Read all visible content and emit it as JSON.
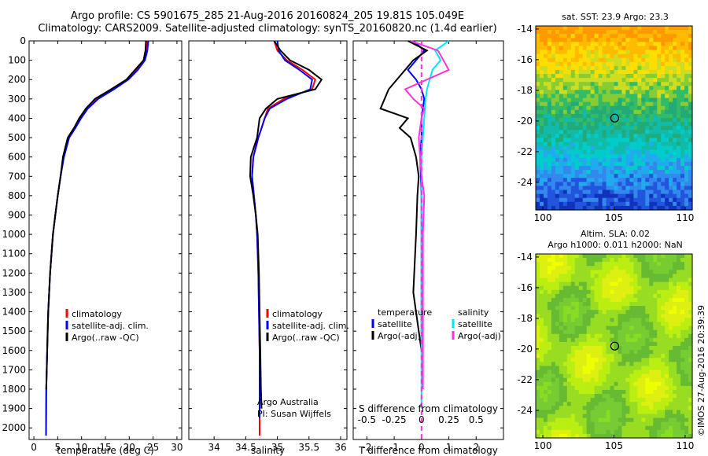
{
  "header": {
    "line1": "Argo profile: CS 5901675_285 21-Aug-2016 20160824_205 19.81S 105.049E",
    "line2": "Climatology: CARS2009. Satellite-adjusted climatology: synTS_20160820.nc (1.4d earlier)"
  },
  "colors": {
    "climatology": "#ff0000",
    "satellite": "#0000ff",
    "argo": "#000000",
    "sat_temp": "#00e5ff",
    "argo_sal": "#ff33dd"
  },
  "footer": {
    "credit": "©IMOS 27-Aug-2016 20:39:39",
    "argo": "Argo Australia",
    "pi": "PI: Susan Wijffels"
  },
  "chart_data": [
    {
      "type": "line",
      "name": "temperature-profile",
      "xlabel": "temperature (deg C)",
      "xlim": [
        -1,
        31
      ],
      "ylim": [
        2060,
        0
      ],
      "xticks": [
        "0",
        "5",
        "10",
        "15",
        "20",
        "25",
        "30"
      ],
      "yticks": [
        "0",
        "100",
        "200",
        "300",
        "400",
        "500",
        "600",
        "700",
        "800",
        "900",
        "1000",
        "1100",
        "1200",
        "1300",
        "1400",
        "1500",
        "1600",
        "1700",
        "1800",
        "1900",
        "2000"
      ],
      "legend": [
        "climatology",
        "satellite-adj. clim.",
        "Argo(..raw -QC)"
      ],
      "series": [
        {
          "name": "climatology",
          "color": "#ff0000",
          "x": [
            23.8,
            23.6,
            23.2,
            21.5,
            19.5,
            16.5,
            13.2,
            11,
            9.7,
            8.5,
            7.2,
            6.2,
            5.6,
            5,
            4.5,
            4,
            3.7,
            3.4,
            3.2,
            3,
            2.9,
            2.8,
            2.6,
            2.55
          ],
          "y": [
            0,
            50,
            100,
            150,
            200,
            250,
            300,
            350,
            400,
            450,
            500,
            600,
            700,
            800,
            900,
            1000,
            1100,
            1200,
            1300,
            1400,
            1500,
            1600,
            1800,
            2040
          ]
        },
        {
          "name": "satellite-adj. clim.",
          "color": "#0000ff",
          "x": [
            24,
            23.8,
            23.3,
            21.8,
            19.8,
            16.8,
            13.5,
            11.3,
            9.9,
            8.7,
            7.4,
            6.3,
            5.6,
            5,
            4.5,
            4,
            3.7,
            3.4,
            3.2,
            3,
            2.9,
            2.8,
            2.6,
            2.55
          ],
          "y": [
            0,
            50,
            100,
            150,
            200,
            250,
            300,
            350,
            400,
            450,
            500,
            600,
            700,
            800,
            900,
            1000,
            1100,
            1200,
            1300,
            1400,
            1500,
            1600,
            1800,
            2040
          ]
        },
        {
          "name": "Argo(..raw -QC)",
          "color": "#000000",
          "x": [
            23.5,
            23.4,
            23,
            21.2,
            19.4,
            16.2,
            12.8,
            10.9,
            9.5,
            8.4,
            7.1,
            6.1,
            5.6,
            5,
            4.5,
            4,
            3.7,
            3.4,
            3.2,
            3,
            2.9,
            2.8,
            2.6
          ],
          "y": [
            0,
            50,
            100,
            150,
            200,
            250,
            300,
            350,
            400,
            450,
            500,
            600,
            700,
            800,
            900,
            1000,
            1100,
            1200,
            1300,
            1400,
            1500,
            1600,
            1800
          ]
        }
      ]
    },
    {
      "type": "line",
      "name": "salinity-profile",
      "xlabel": "salinity",
      "xlim": [
        33.6,
        36.1
      ],
      "ylim": [
        2060,
        0
      ],
      "xticks": [
        "34",
        "34.5",
        "35",
        "35.5",
        "36"
      ],
      "legend": [
        "climatology",
        "satellite-adj. clim.",
        "Argo(..raw -QC)"
      ],
      "series": [
        {
          "name": "climatology",
          "color": "#ff0000",
          "x": [
            34.95,
            35.0,
            35.15,
            35.4,
            35.6,
            35.55,
            35.1,
            34.85,
            34.8,
            34.75,
            34.7,
            34.62,
            34.6,
            34.63,
            34.66,
            34.68,
            34.7,
            34.71,
            34.72,
            34.72,
            34.72
          ],
          "y": [
            0,
            50,
            100,
            150,
            200,
            250,
            300,
            350,
            400,
            450,
            500,
            600,
            700,
            800,
            900,
            1000,
            1200,
            1400,
            1600,
            1800,
            2040
          ]
        },
        {
          "name": "satellite-adj. clim.",
          "color": "#0000ff",
          "x": [
            35.0,
            35.02,
            35.12,
            35.35,
            35.55,
            35.52,
            35.15,
            34.88,
            34.8,
            34.75,
            34.7,
            34.62,
            34.6,
            34.63,
            34.66,
            34.68,
            34.7,
            34.71,
            34.72,
            34.72,
            34.72
          ],
          "y": [
            0,
            50,
            100,
            150,
            200,
            250,
            300,
            350,
            400,
            450,
            500,
            600,
            700,
            800,
            900,
            1000,
            1200,
            1400,
            1600,
            1800,
            1950
          ]
        },
        {
          "name": "Argo(..raw -QC)",
          "color": "#000000",
          "x": [
            34.95,
            35.05,
            35.2,
            35.5,
            35.7,
            35.6,
            35.0,
            34.82,
            34.72,
            34.7,
            34.68,
            34.58,
            34.57,
            34.62,
            34.66,
            34.69,
            34.71,
            34.72,
            34.73,
            34.74,
            34.75
          ],
          "y": [
            0,
            50,
            100,
            150,
            200,
            250,
            300,
            350,
            400,
            450,
            500,
            600,
            700,
            800,
            900,
            1000,
            1200,
            1400,
            1600,
            1800,
            1900
          ]
        }
      ]
    },
    {
      "type": "line",
      "name": "difference-profile",
      "xlabel": "T difference from climatology",
      "xlabel_top": "S difference from climatology",
      "xlim": [
        -2.5,
        3
      ],
      "ylim": [
        2060,
        0
      ],
      "xticks": [
        "-2",
        "-1",
        "0",
        "1",
        "2"
      ],
      "xticks_top": [
        "-0.5",
        "-0.25",
        "0",
        "0.25",
        "0.5"
      ],
      "legend_headers": [
        "temperature",
        "salinity"
      ],
      "legend": [
        "satellite",
        "Argo(-adj)",
        "satellite",
        "Argo(-adj)"
      ],
      "series": [
        {
          "name": "T satellite",
          "color": "#0000ff",
          "x": [
            -0.3,
            0.1,
            -0.2,
            -0.5,
            -0.2,
            0,
            0.1,
            0,
            0,
            -0.05,
            0,
            0,
            0,
            0,
            0
          ],
          "y": [
            0,
            50,
            100,
            150,
            200,
            250,
            300,
            400,
            500,
            600,
            800,
            1000,
            1200,
            1400,
            1600
          ]
        },
        {
          "name": "T Argo(-adj)",
          "color": "#000000",
          "x": [
            -0.5,
            0.2,
            -0.3,
            -0.6,
            -1.2,
            -1.5,
            -0.5,
            -0.8,
            -0.4,
            -0.2,
            -0.1,
            -0.15,
            -0.2,
            -0.3,
            -0.1,
            0
          ],
          "y": [
            0,
            50,
            100,
            150,
            250,
            350,
            400,
            450,
            500,
            600,
            700,
            800,
            1000,
            1300,
            1500,
            1600
          ]
        },
        {
          "name": "S satellite",
          "color": "#00e5ff",
          "x": [
            1,
            0.5,
            0.7,
            0.4,
            0.3,
            0.2,
            0.15,
            0.1,
            0.05,
            0,
            0,
            0,
            0
          ],
          "y": [
            0,
            50,
            100,
            150,
            200,
            250,
            300,
            400,
            500,
            600,
            1000,
            1500,
            1900
          ]
        },
        {
          "name": "S Argo(-adj)",
          "color": "#ff33dd",
          "x": [
            -0.4,
            0.6,
            1.0,
            0.2,
            -0.6,
            -0.3,
            0.1,
            0,
            -0.1,
            0,
            0.1,
            0.05,
            0.05,
            0.05
          ],
          "y": [
            0,
            50,
            150,
            200,
            250,
            300,
            350,
            400,
            500,
            700,
            800,
            1000,
            1400,
            1800
          ]
        }
      ]
    },
    {
      "type": "heatmap",
      "name": "sst-map",
      "title": "sat. SST: 23.9  Argo: 23.3",
      "xticks": [
        "100",
        "105",
        "110"
      ],
      "yticks": [
        "-14",
        "-16",
        "-18",
        "-20",
        "-22",
        "-24"
      ],
      "xlim": [
        99.5,
        110.5
      ],
      "ylim": [
        -25.8,
        -13.8
      ],
      "marker": {
        "x": 105.05,
        "y": -19.81
      }
    },
    {
      "type": "heatmap",
      "name": "sla-map",
      "title": "Altim. SLA: 0.02",
      "subtitle": "Argo h1000: 0.011 h2000: NaN",
      "xticks": [
        "100",
        "105",
        "110"
      ],
      "yticks": [
        "-14",
        "-16",
        "-18",
        "-20",
        "-22",
        "-24"
      ],
      "xlim": [
        99.5,
        110.5
      ],
      "ylim": [
        -25.8,
        -13.8
      ],
      "marker": {
        "x": 105.05,
        "y": -19.81
      }
    }
  ]
}
